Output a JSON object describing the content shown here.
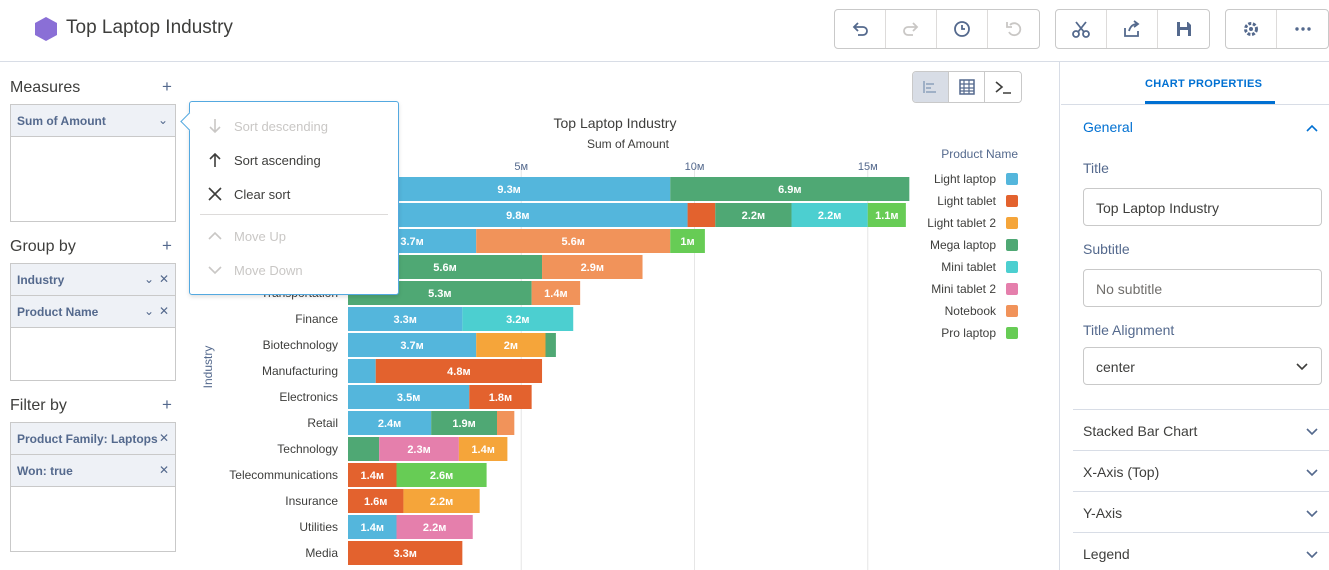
{
  "header": {
    "title": "Top Laptop Industry",
    "buttons": [
      "undo-icon",
      "redo-icon",
      "history-icon",
      "revert-icon",
      "cut-icon",
      "share-icon",
      "save-icon",
      "gear-icon",
      "more-icon"
    ]
  },
  "left": {
    "measures": {
      "title": "Measures",
      "plus": "+",
      "items": [
        "Sum of Amount"
      ]
    },
    "groupby": {
      "title": "Group by",
      "plus": "+",
      "items": [
        "Industry",
        "Product Name"
      ]
    },
    "filterby": {
      "title": "Filter by",
      "plus": "+",
      "items": [
        "Product Family: Laptops",
        "Won: true"
      ]
    }
  },
  "menu": {
    "sort_desc": "Sort descending",
    "sort_asc": "Sort ascending",
    "clear_sort": "Clear sort",
    "move_up": "Move Up",
    "move_down": "Move Down"
  },
  "colors": {
    "Light laptop": "#54b6dc",
    "Light tablet": "#e3622e",
    "Light tablet 2": "#f5a53a",
    "Mega laptop": "#4fa874",
    "Mini tablet": "#4ccfd0",
    "Mini tablet 2": "#e57fac",
    "Notebook": "#f1935a",
    "Pro laptop": "#67cc55"
  },
  "chart_data": {
    "type": "bar",
    "orientation": "horizontal",
    "stacked": true,
    "title": "Top Laptop Industry",
    "subtitle": "Sum of Amount",
    "ylabel": "Industry",
    "xlim": [
      0,
      16.5
    ],
    "x_ticks": [
      5,
      10,
      15
    ],
    "x_tick_labels": [
      "5м",
      "10м",
      "15м"
    ],
    "legend_title": "Product Name",
    "legend": [
      "Light laptop",
      "Light tablet",
      "Light tablet 2",
      "Mega laptop",
      "Mini tablet",
      "Mini tablet 2",
      "Notebook",
      "Pro laptop"
    ],
    "rows": [
      {
        "category": "",
        "segments": [
          {
            "series": "Light laptop",
            "value": 9.3,
            "label": "9.3м"
          },
          {
            "series": "Mega laptop",
            "value": 6.9,
            "label": "6.9м"
          }
        ]
      },
      {
        "category": "",
        "segments": [
          {
            "series": "Light laptop",
            "value": 9.8,
            "label": "9.8м"
          },
          {
            "series": "Light tablet",
            "value": 0.8,
            "label": ""
          },
          {
            "series": "Mega laptop",
            "value": 2.2,
            "label": "2.2м"
          },
          {
            "series": "Mini tablet",
            "value": 2.2,
            "label": "2.2м"
          },
          {
            "series": "Pro laptop",
            "value": 1.1,
            "label": "1.1м"
          }
        ]
      },
      {
        "category": "",
        "segments": [
          {
            "series": "Light laptop",
            "value": 3.7,
            "label": "3.7м"
          },
          {
            "series": "Notebook",
            "value": 5.6,
            "label": "5.6м"
          },
          {
            "series": "Pro laptop",
            "value": 1.0,
            "label": "1м"
          }
        ]
      },
      {
        "category": "",
        "segments": [
          {
            "series": "Mega laptop",
            "value": 5.6,
            "label": "5.6м"
          },
          {
            "series": "Notebook",
            "value": 2.9,
            "label": "2.9м"
          }
        ]
      },
      {
        "category": "Transportation",
        "segments": [
          {
            "series": "Mega laptop",
            "value": 5.3,
            "label": "5.3м"
          },
          {
            "series": "Notebook",
            "value": 1.4,
            "label": "1.4м"
          }
        ]
      },
      {
        "category": "Finance",
        "segments": [
          {
            "series": "Light laptop",
            "value": 3.3,
            "label": "3.3м"
          },
          {
            "series": "Mini tablet",
            "value": 3.2,
            "label": "3.2м"
          }
        ]
      },
      {
        "category": "Biotechnology",
        "segments": [
          {
            "series": "Light laptop",
            "value": 3.7,
            "label": "3.7м"
          },
          {
            "series": "Light tablet 2",
            "value": 2.0,
            "label": "2м"
          },
          {
            "series": "Mega laptop",
            "value": 0.3,
            "label": ""
          }
        ]
      },
      {
        "category": "Manufacturing",
        "segments": [
          {
            "series": "Light laptop",
            "value": 0.8,
            "label": ""
          },
          {
            "series": "Light tablet",
            "value": 4.8,
            "label": "4.8м"
          }
        ]
      },
      {
        "category": "Electronics",
        "segments": [
          {
            "series": "Light laptop",
            "value": 3.5,
            "label": "3.5м"
          },
          {
            "series": "Light tablet",
            "value": 1.8,
            "label": "1.8м"
          }
        ]
      },
      {
        "category": "Retail",
        "segments": [
          {
            "series": "Light laptop",
            "value": 2.4,
            "label": "2.4м"
          },
          {
            "series": "Mega laptop",
            "value": 1.9,
            "label": "1.9м"
          },
          {
            "series": "Notebook",
            "value": 0.5,
            "label": ""
          }
        ]
      },
      {
        "category": "Technology",
        "segments": [
          {
            "series": "Mega laptop",
            "value": 0.9,
            "label": ""
          },
          {
            "series": "Mini tablet 2",
            "value": 2.3,
            "label": "2.3м"
          },
          {
            "series": "Light tablet 2",
            "value": 1.4,
            "label": "1.4м"
          }
        ]
      },
      {
        "category": "Telecommunications",
        "segments": [
          {
            "series": "Light tablet",
            "value": 1.4,
            "label": "1.4м"
          },
          {
            "series": "Pro laptop",
            "value": 2.6,
            "label": "2.6м"
          }
        ]
      },
      {
        "category": "Insurance",
        "segments": [
          {
            "series": "Light tablet",
            "value": 1.6,
            "label": "1.6м"
          },
          {
            "series": "Light tablet 2",
            "value": 2.2,
            "label": "2.2м"
          }
        ]
      },
      {
        "category": "Utilities",
        "segments": [
          {
            "series": "Light laptop",
            "value": 1.4,
            "label": "1.4м"
          },
          {
            "series": "Mini tablet 2",
            "value": 2.2,
            "label": "2.2м"
          }
        ]
      },
      {
        "category": "Media",
        "segments": [
          {
            "series": "Light tablet",
            "value": 3.3,
            "label": "3.3м"
          }
        ]
      }
    ]
  },
  "right": {
    "tab": "CHART PROPERTIES",
    "general": {
      "title": "General",
      "title_label": "Title",
      "title_value": "Top Laptop Industry",
      "subtitle_label": "Subtitle",
      "subtitle_placeholder": "No subtitle",
      "align_label": "Title Alignment",
      "align_value": "center"
    },
    "sections": [
      "Stacked Bar Chart",
      "X-Axis (Top)",
      "Y-Axis",
      "Legend"
    ]
  }
}
